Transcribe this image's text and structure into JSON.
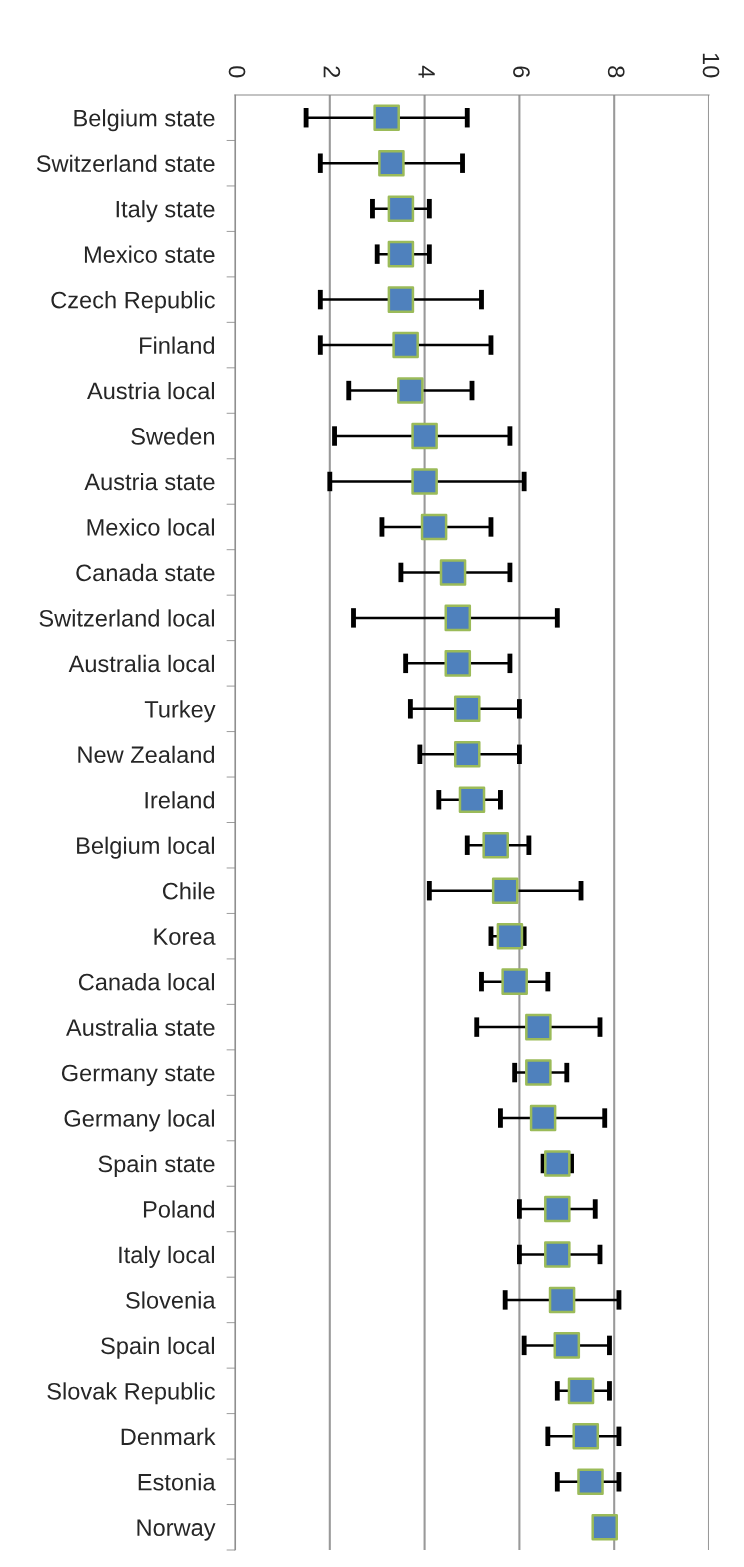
{
  "chart_data": {
    "type": "scatter",
    "orientation": "horizontal",
    "categories": [
      "Belgium state",
      "Switzerland state",
      "Italy state",
      "Mexico state",
      "Czech Republic",
      "Finland",
      "Austria local",
      "Sweden",
      "Austria state",
      "Mexico local",
      "Canada state",
      "Switzerland local",
      "Australia local",
      "Turkey",
      "New Zealand",
      "Ireland",
      "Belgium local",
      "Chile",
      "Korea",
      "Canada local",
      "Australia state",
      "Germany state",
      "Germany local",
      "Spain state",
      "Poland",
      "Italy local",
      "Slovenia",
      "Spain local",
      "Slovak Republic",
      "Denmark",
      "Estonia",
      "Norway"
    ],
    "series": [
      {
        "color": "#4f81bd",
        "marker": "square",
        "values": [
          3.2,
          3.3,
          3.5,
          3.5,
          3.5,
          3.6,
          3.7,
          4.0,
          4.0,
          4.2,
          4.6,
          4.7,
          4.7,
          4.9,
          4.9,
          5.0,
          5.5,
          5.7,
          5.8,
          5.9,
          6.4,
          6.4,
          6.5,
          6.8,
          6.8,
          6.8,
          6.9,
          7.0,
          7.3,
          7.4,
          7.5,
          7.8
        ],
        "errors": [
          [
            1.5,
            4.9
          ],
          [
            1.8,
            4.8
          ],
          [
            2.9,
            4.1
          ],
          [
            3.0,
            4.1
          ],
          [
            1.8,
            5.2
          ],
          [
            1.8,
            5.4
          ],
          [
            2.4,
            5.0
          ],
          [
            2.1,
            5.8
          ],
          [
            2.0,
            6.1
          ],
          [
            3.1,
            5.4
          ],
          [
            3.5,
            5.8
          ],
          [
            2.5,
            6.8
          ],
          [
            3.6,
            5.8
          ],
          [
            3.7,
            6.0
          ],
          [
            3.9,
            6.0
          ],
          [
            4.3,
            5.6
          ],
          [
            4.9,
            6.2
          ],
          [
            4.1,
            7.3
          ],
          [
            5.4,
            6.1
          ],
          [
            5.2,
            6.6
          ],
          [
            5.1,
            7.7
          ],
          [
            5.9,
            7.0
          ],
          [
            5.6,
            7.8
          ],
          [
            6.5,
            7.1
          ],
          [
            6.0,
            7.6
          ],
          [
            6.0,
            7.7
          ],
          [
            5.7,
            8.1
          ],
          [
            6.1,
            7.9
          ],
          [
            6.8,
            7.9
          ],
          [
            6.6,
            8.1
          ],
          [
            6.8,
            8.1
          ],
          null
        ]
      }
    ],
    "xlim": [
      0,
      10
    ],
    "xticks": [
      0,
      2,
      4,
      6,
      8,
      10
    ],
    "grid": "x",
    "legend": false
  }
}
